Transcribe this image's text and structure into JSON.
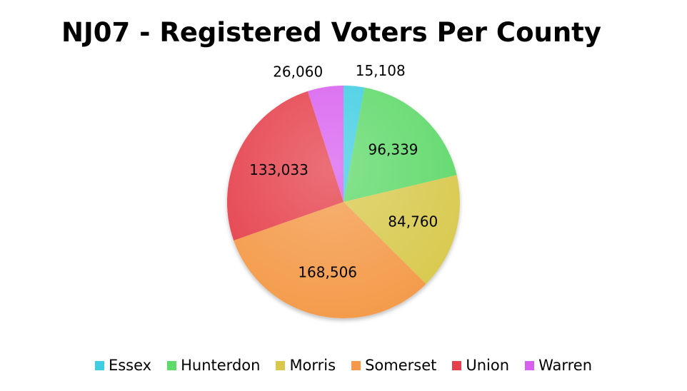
{
  "chart_data": {
    "type": "pie",
    "title": "NJ07 - Registered Voters Per County",
    "categories": [
      "Essex",
      "Hunterdon",
      "Morris",
      "Somerset",
      "Union",
      "Warren"
    ],
    "values": [
      15108,
      96339,
      84760,
      168506,
      133033,
      26060
    ],
    "data_labels": [
      "15,108",
      "96,339",
      "84,760",
      "168,506",
      "133,033",
      "26,060"
    ],
    "colors": [
      "#3fcde3",
      "#5fd96a",
      "#d8c94e",
      "#f49a4a",
      "#e5404b",
      "#d860ef"
    ],
    "legend_position": "bottom",
    "start_angle": "12 o'clock",
    "direction": "clockwise"
  }
}
